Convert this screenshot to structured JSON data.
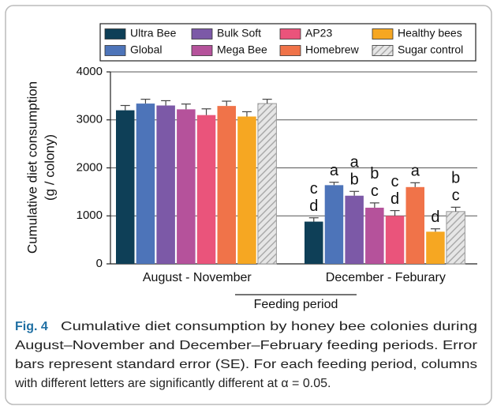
{
  "chart_data": {
    "type": "bar",
    "categories": [
      "August - November",
      "December - Feburary"
    ],
    "ylabel_lines": [
      "Cumulative diet consumption",
      "(g / colony)"
    ],
    "xlabel": "Feeding period",
    "ylim": [
      0,
      4000
    ],
    "yticks": [
      0,
      1000,
      2000,
      3000,
      4000
    ],
    "grid": true,
    "series": [
      {
        "name": "Ultra Bee",
        "color": "#0e3f57",
        "values": [
          3200,
          880
        ],
        "errors": [
          100,
          80
        ],
        "letters": [
          null,
          [
            "c",
            "d"
          ]
        ]
      },
      {
        "name": "Global",
        "color": "#4d74b9",
        "values": [
          3340,
          1640
        ],
        "errors": [
          90,
          60
        ],
        "letters": [
          null,
          [
            "a"
          ]
        ]
      },
      {
        "name": "Bulk Soft",
        "color": "#7c59a7",
        "values": [
          3300,
          1420
        ],
        "errors": [
          100,
          90
        ],
        "letters": [
          null,
          [
            "a",
            "b"
          ]
        ]
      },
      {
        "name": "Mega Bee",
        "color": "#b5529b",
        "values": [
          3220,
          1170
        ],
        "errors": [
          110,
          100
        ],
        "letters": [
          null,
          [
            "b",
            "c"
          ]
        ]
      },
      {
        "name": "AP23",
        "color": "#ea547b",
        "values": [
          3100,
          1000
        ],
        "errors": [
          130,
          110
        ],
        "letters": [
          null,
          [
            "c",
            "d"
          ]
        ]
      },
      {
        "name": "Homebrew",
        "color": "#f07349",
        "values": [
          3290,
          1600
        ],
        "errors": [
          100,
          90
        ],
        "letters": [
          null,
          [
            "a"
          ]
        ]
      },
      {
        "name": "Healthy bees",
        "color": "#f6a722",
        "values": [
          3070,
          670
        ],
        "errors": [
          100,
          60
        ],
        "letters": [
          null,
          [
            "d"
          ]
        ]
      },
      {
        "name": "Sugar control",
        "color": "#d4d4d4",
        "hatch": true,
        "values": [
          3340,
          1090
        ],
        "errors": [
          90,
          90
        ],
        "letters": [
          null,
          [
            "b",
            "c"
          ]
        ]
      }
    ]
  },
  "caption": {
    "label": "Fig. 4",
    "lines": [
      "Cumulative diet consumption by honey bee colonies during",
      "August–November and December–February feeding periods. Error",
      "bars represent standard error (SE). For each feeding period, columns",
      "with different letters are significantly different at α = 0.05."
    ]
  }
}
